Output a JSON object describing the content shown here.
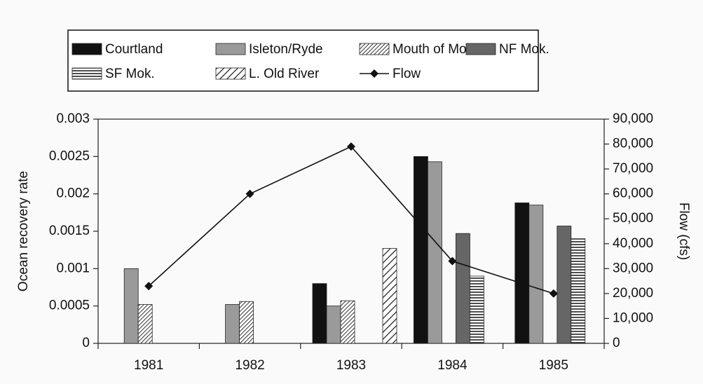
{
  "chart_data": {
    "type": "bar",
    "categories": [
      "1981",
      "1982",
      "1983",
      "1984",
      "1985"
    ],
    "y_label": "Ocean recovery rate",
    "y2_label": "Flow (cfs)",
    "ylim": [
      0,
      0.003
    ],
    "yticks": [
      0,
      0.0005,
      0.001,
      0.0015,
      0.002,
      0.0025,
      0.003
    ],
    "y2lim": [
      0,
      90000
    ],
    "y2ticks": [
      0,
      {
        "value": 10000,
        "label": "10,000"
      },
      {
        "value": 20000,
        "label": "20,000"
      },
      {
        "value": 30000,
        "label": "30,000"
      },
      {
        "value": 40000,
        "label": "40,000"
      },
      {
        "value": 50000,
        "label": "50,000"
      },
      {
        "value": 60000,
        "label": "60,000"
      },
      {
        "value": 70000,
        "label": "70,000"
      },
      {
        "value": 80000,
        "label": "80,000"
      },
      {
        "value": 90000,
        "label": "90,000"
      }
    ],
    "series": [
      {
        "name": "Courtland",
        "color": "#111111",
        "pattern": "solid",
        "values": [
          null,
          null,
          0.0008,
          0.0025,
          0.00188
        ]
      },
      {
        "name": "Isleton/Ryde",
        "color": "#9a9a9a",
        "pattern": "solid",
        "values": [
          0.001,
          0.00052,
          0.0005,
          0.00243,
          0.00185
        ]
      },
      {
        "name": "Mouth of Mok.",
        "color": "#333333",
        "pattern": "fine-diagonal",
        "values": [
          0.00052,
          0.00056,
          0.00057,
          null,
          null
        ]
      },
      {
        "name": "NF Mok.",
        "color": "#666666",
        "pattern": "solid",
        "values": [
          null,
          null,
          null,
          0.00147,
          0.00157
        ]
      },
      {
        "name": "SF Mok.",
        "color": "#222222",
        "pattern": "horizontal",
        "values": [
          null,
          null,
          null,
          0.0009,
          0.0014
        ]
      },
      {
        "name": "L. Old River",
        "color": "#222222",
        "pattern": "diagonal",
        "values": [
          null,
          null,
          0.00127,
          null,
          null
        ]
      },
      {
        "name": "Flow",
        "color": "#111111",
        "type": "line",
        "marker": "diamond",
        "axis": "y2",
        "values": [
          23000,
          60000,
          79000,
          33000,
          20000
        ]
      }
    ]
  }
}
